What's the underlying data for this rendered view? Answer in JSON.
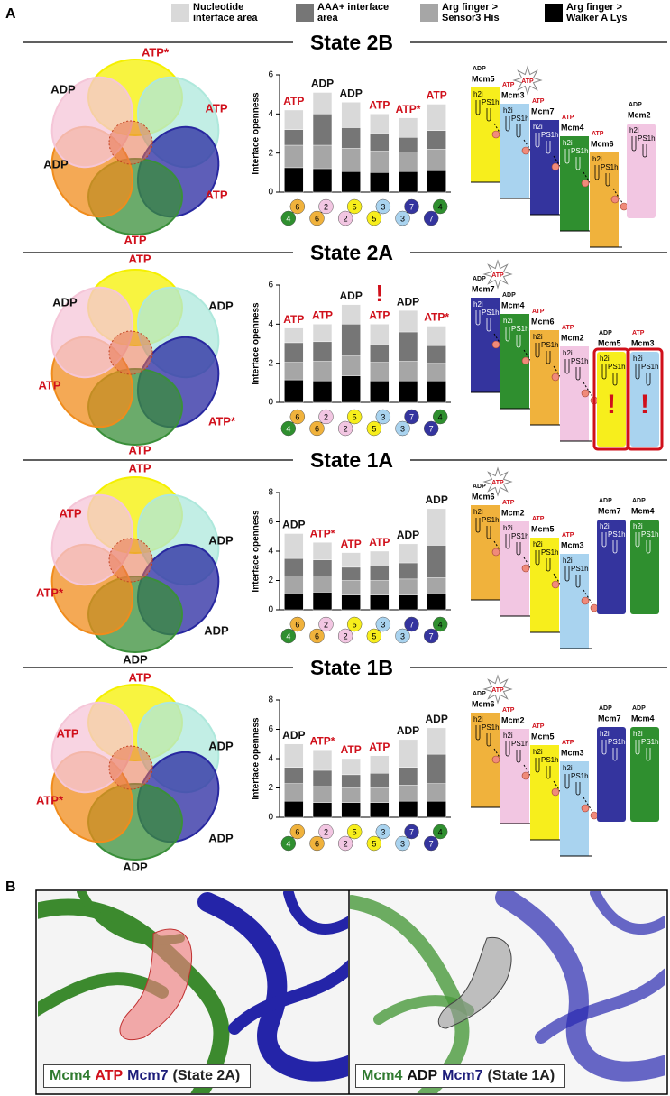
{
  "panel_labels": [
    "A",
    "B"
  ],
  "legend": [
    {
      "name": "Nucleotide interface area",
      "color": "#d9d9d9"
    },
    {
      "name": "AAA+ interface area",
      "color": "#767676"
    },
    {
      "name": "Arg finger > Sensor3 His",
      "color": "#a6a6a6"
    },
    {
      "name": "Arg finger > Walker A Lys",
      "color": "#000000"
    }
  ],
  "subunit_colors": {
    "2": "#f2c6e2",
    "3": "#a9d3ef",
    "4": "#2f8f2f",
    "5": "#f7ee1c",
    "6": "#f0b23c",
    "7": "#34349e"
  },
  "motifs": [
    "h2i",
    "PS1h"
  ],
  "chart_data": [
    {
      "type": "bar",
      "stacked": true,
      "title": "State 2B",
      "y_label": "Interface openness",
      "ylim": [
        0,
        6
      ],
      "yticks": [
        0,
        2,
        4,
        6
      ],
      "bar_labels": [
        "ATP",
        "ADP",
        "ADP",
        "ATP",
        "ATP*",
        "ATP"
      ],
      "interfaces": [
        {
          "top": "6",
          "bottom": "4"
        },
        {
          "top": "2",
          "bottom": "6"
        },
        {
          "top": "5",
          "bottom": "2"
        },
        {
          "top": "3",
          "bottom": "5"
        },
        {
          "top": "7",
          "bottom": "3"
        },
        {
          "top": "4",
          "bottom": "7"
        }
      ],
      "series": [
        {
          "color": "#000000",
          "values": [
            1.25,
            1.2,
            1.05,
            1.0,
            1.05,
            1.1
          ]
        },
        {
          "color": "#a6a6a6",
          "values": [
            1.15,
            1.2,
            1.2,
            1.1,
            1.0,
            1.1
          ]
        },
        {
          "color": "#767676",
          "values": [
            0.8,
            1.6,
            1.05,
            0.9,
            0.75,
            0.95
          ]
        },
        {
          "color": "#d9d9d9",
          "values": [
            1.0,
            1.1,
            1.3,
            1.0,
            1.0,
            1.35
          ]
        }
      ]
    },
    {
      "type": "bar",
      "stacked": true,
      "title": "State 2A",
      "y_label": "Interface openness",
      "ylim": [
        0,
        6
      ],
      "yticks": [
        0,
        2,
        4,
        6
      ],
      "bar_labels": [
        "ATP",
        "ATP",
        "ADP",
        "ATP",
        "ADP",
        "ATP*"
      ],
      "annotations": [
        {
          "text": "!",
          "bar": 3
        }
      ],
      "interfaces": [
        {
          "top": "6",
          "bottom": "4"
        },
        {
          "top": "2",
          "bottom": "6"
        },
        {
          "top": "5",
          "bottom": "2"
        },
        {
          "top": "3",
          "bottom": "5"
        },
        {
          "top": "7",
          "bottom": "3"
        },
        {
          "top": "4",
          "bottom": "7"
        }
      ],
      "series": [
        {
          "color": "#000000",
          "values": [
            1.15,
            1.1,
            1.35,
            1.1,
            1.1,
            1.1
          ]
        },
        {
          "color": "#a6a6a6",
          "values": [
            0.9,
            1.0,
            1.05,
            0.95,
            1.0,
            0.9
          ]
        },
        {
          "color": "#767676",
          "values": [
            1.0,
            1.0,
            1.6,
            0.9,
            1.5,
            0.9
          ]
        },
        {
          "color": "#d9d9d9",
          "values": [
            0.75,
            0.9,
            1.0,
            1.05,
            1.1,
            1.0
          ]
        }
      ]
    },
    {
      "type": "bar",
      "stacked": true,
      "title": "State 1A",
      "y_label": "Interface openness",
      "ylim": [
        0,
        8
      ],
      "yticks": [
        0,
        2,
        4,
        6,
        8
      ],
      "bar_labels": [
        "ADP",
        "ATP*",
        "ATP",
        "ATP",
        "ADP",
        "ADP"
      ],
      "interfaces": [
        {
          "top": "6",
          "bottom": "4"
        },
        {
          "top": "2",
          "bottom": "6"
        },
        {
          "top": "5",
          "bottom": "2"
        },
        {
          "top": "3",
          "bottom": "5"
        },
        {
          "top": "7",
          "bottom": "3"
        },
        {
          "top": "4",
          "bottom": "7"
        }
      ],
      "series": [
        {
          "color": "#000000",
          "values": [
            1.1,
            1.2,
            1.0,
            1.0,
            1.0,
            1.1
          ]
        },
        {
          "color": "#a6a6a6",
          "values": [
            1.2,
            1.1,
            1.0,
            1.0,
            1.1,
            1.1
          ]
        },
        {
          "color": "#767676",
          "values": [
            1.2,
            1.1,
            0.9,
            1.0,
            1.1,
            2.2
          ]
        },
        {
          "color": "#d9d9d9",
          "values": [
            1.7,
            1.2,
            1.0,
            1.0,
            1.3,
            2.5
          ]
        }
      ]
    },
    {
      "type": "bar",
      "stacked": true,
      "title": "State 1B",
      "y_label": "Interface openness",
      "ylim": [
        0,
        8
      ],
      "yticks": [
        0,
        2,
        4,
        6,
        8
      ],
      "bar_labels": [
        "ADP",
        "ATP*",
        "ATP",
        "ATP",
        "ADP",
        "ADP"
      ],
      "interfaces": [
        {
          "top": "6",
          "bottom": "4"
        },
        {
          "top": "2",
          "bottom": "6"
        },
        {
          "top": "5",
          "bottom": "2"
        },
        {
          "top": "3",
          "bottom": "5"
        },
        {
          "top": "7",
          "bottom": "3"
        },
        {
          "top": "4",
          "bottom": "7"
        }
      ],
      "series": [
        {
          "color": "#000000",
          "values": [
            1.1,
            1.0,
            1.0,
            1.0,
            1.1,
            1.1
          ]
        },
        {
          "color": "#a6a6a6",
          "values": [
            1.2,
            1.1,
            1.0,
            1.0,
            1.1,
            1.2
          ]
        },
        {
          "color": "#767676",
          "values": [
            1.1,
            1.1,
            0.9,
            1.0,
            1.2,
            2.0
          ]
        },
        {
          "color": "#d9d9d9",
          "values": [
            1.6,
            1.4,
            1.1,
            1.2,
            1.9,
            1.8
          ]
        }
      ]
    }
  ],
  "structures": [
    {
      "labels": [
        "ATP*",
        "ADP",
        "ATP",
        "ADP",
        "ATP",
        "ATP"
      ]
    },
    {
      "labels": [
        "ATP",
        "ADP",
        "ADP",
        "ATP",
        "ATP*",
        "ATP"
      ]
    },
    {
      "labels": [
        "ATP",
        "ATP",
        "ADP",
        "ATP*",
        "ADP",
        "ADP"
      ]
    },
    {
      "labels": [
        "ATP",
        "ATP",
        "ADP",
        "ATP*",
        "ADP",
        "ADP"
      ]
    }
  ],
  "schematics": [
    {
      "staircase": [
        {
          "name": "Mcm5",
          "nucleotide": "ADP"
        },
        {
          "name": "Mcm3",
          "nucleotide": "ATP",
          "star": "ATP"
        },
        {
          "name": "Mcm7",
          "nucleotide": "ATP"
        },
        {
          "name": "Mcm4",
          "nucleotide": "ATP"
        },
        {
          "name": "Mcm6",
          "nucleotide": "ATP"
        }
      ],
      "detached": [
        {
          "name": "Mcm2",
          "nucleotide": "ADP"
        }
      ]
    },
    {
      "staircase": [
        {
          "name": "Mcm7",
          "nucleotide": "ADP",
          "star": "ATP"
        },
        {
          "name": "Mcm4",
          "nucleotide": "ADP"
        },
        {
          "name": "Mcm6",
          "nucleotide": "ATP"
        },
        {
          "name": "Mcm2",
          "nucleotide": "ATP"
        }
      ],
      "detached": [
        {
          "name": "Mcm5",
          "nucleotide": "ADP",
          "alert": "!"
        },
        {
          "name": "Mcm3",
          "nucleotide": "ATP",
          "alert": "!"
        }
      ]
    },
    {
      "staircase": [
        {
          "name": "Mcm6",
          "nucleotide": "ADP",
          "star": "ATP"
        },
        {
          "name": "Mcm2",
          "nucleotide": "ATP"
        },
        {
          "name": "Mcm5",
          "nucleotide": "ATP"
        },
        {
          "name": "Mcm3",
          "nucleotide": "ATP"
        }
      ],
      "detached": [
        {
          "name": "Mcm7",
          "nucleotide": "ADP"
        },
        {
          "name": "Mcm4",
          "nucleotide": "ADP"
        }
      ]
    },
    {
      "staircase": [
        {
          "name": "Mcm6",
          "nucleotide": "ADP",
          "star": "ATP"
        },
        {
          "name": "Mcm2",
          "nucleotide": "ATP"
        },
        {
          "name": "Mcm5",
          "nucleotide": "ATP"
        },
        {
          "name": "Mcm3",
          "nucleotide": "ATP"
        }
      ],
      "detached": [
        {
          "name": "Mcm7",
          "nucleotide": "ADP"
        },
        {
          "name": "Mcm4",
          "nucleotide": "ADP"
        }
      ]
    }
  ],
  "panel_b": [
    {
      "caption": [
        {
          "text": "Mcm4",
          "color": "#2f7a2f"
        },
        {
          "text": "ATP",
          "color": "#d0101b"
        },
        {
          "text": "Mcm7",
          "color": "#1d1d7a"
        },
        {
          "text": "(State 2A)",
          "color": "#222222"
        }
      ]
    },
    {
      "caption": [
        {
          "text": "Mcm4",
          "color": "#2f7a2f"
        },
        {
          "text": "ADP",
          "color": "#111111"
        },
        {
          "text": "Mcm7",
          "color": "#1d1d7a"
        },
        {
          "text": "(State 1A)",
          "color": "#222222"
        }
      ]
    }
  ]
}
